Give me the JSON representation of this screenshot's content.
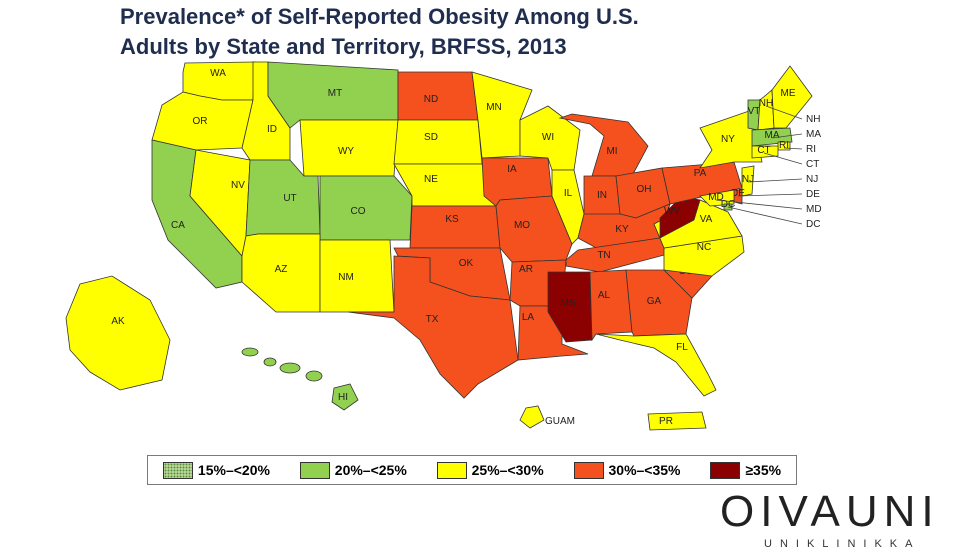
{
  "title": "Prevalence* of Self-Reported Obesity Among U.S. Adults by State and Territory, BRFSS, 2013",
  "colors": {
    "15-20": "#c8e3a8",
    "20-25": "#92d050",
    "25-30": "#ffff00",
    "30-35": "#f4511e",
    "35plus": "#8b0000"
  },
  "legend": [
    {
      "key": "15-20",
      "label": "15%–<20%"
    },
    {
      "key": "20-25",
      "label": "20%–<25%"
    },
    {
      "key": "25-30",
      "label": "25%–<30%"
    },
    {
      "key": "30-35",
      "label": "30%–<35%"
    },
    {
      "key": "35plus",
      "label": "≥35%"
    }
  ],
  "regions": [
    {
      "id": "WA",
      "category": "25-30"
    },
    {
      "id": "OR",
      "category": "25-30"
    },
    {
      "id": "CA",
      "category": "20-25"
    },
    {
      "id": "NV",
      "category": "25-30"
    },
    {
      "id": "ID",
      "category": "25-30"
    },
    {
      "id": "MT",
      "category": "20-25"
    },
    {
      "id": "WY",
      "category": "25-30"
    },
    {
      "id": "UT",
      "category": "20-25"
    },
    {
      "id": "CO",
      "category": "20-25"
    },
    {
      "id": "AZ",
      "category": "25-30"
    },
    {
      "id": "NM",
      "category": "25-30"
    },
    {
      "id": "ND",
      "category": "30-35"
    },
    {
      "id": "SD",
      "category": "25-30"
    },
    {
      "id": "NE",
      "category": "25-30"
    },
    {
      "id": "KS",
      "category": "30-35"
    },
    {
      "id": "OK",
      "category": "30-35"
    },
    {
      "id": "TX",
      "category": "30-35"
    },
    {
      "id": "MN",
      "category": "25-30"
    },
    {
      "id": "IA",
      "category": "30-35"
    },
    {
      "id": "MO",
      "category": "30-35"
    },
    {
      "id": "AR",
      "category": "30-35"
    },
    {
      "id": "LA",
      "category": "30-35"
    },
    {
      "id": "WI",
      "category": "25-30"
    },
    {
      "id": "IL",
      "category": "25-30"
    },
    {
      "id": "MI",
      "category": "30-35"
    },
    {
      "id": "IN",
      "category": "30-35"
    },
    {
      "id": "OH",
      "category": "30-35"
    },
    {
      "id": "KY",
      "category": "30-35"
    },
    {
      "id": "TN",
      "category": "30-35"
    },
    {
      "id": "MS",
      "category": "35plus"
    },
    {
      "id": "AL",
      "category": "30-35"
    },
    {
      "id": "GA",
      "category": "30-35"
    },
    {
      "id": "FL",
      "category": "25-30"
    },
    {
      "id": "SC",
      "category": "30-35"
    },
    {
      "id": "NC",
      "category": "25-30"
    },
    {
      "id": "VA",
      "category": "25-30"
    },
    {
      "id": "WV",
      "category": "35plus"
    },
    {
      "id": "PA",
      "category": "30-35"
    },
    {
      "id": "NY",
      "category": "25-30"
    },
    {
      "id": "VT",
      "category": "20-25"
    },
    {
      "id": "NH",
      "category": "25-30"
    },
    {
      "id": "ME",
      "category": "25-30"
    },
    {
      "id": "MA",
      "category": "20-25"
    },
    {
      "id": "RI",
      "category": "25-30"
    },
    {
      "id": "CT",
      "category": "25-30"
    },
    {
      "id": "NJ",
      "category": "25-30"
    },
    {
      "id": "DE",
      "category": "30-35"
    },
    {
      "id": "MD",
      "category": "25-30"
    },
    {
      "id": "DC",
      "category": "20-25"
    },
    {
      "id": "AK",
      "category": "25-30"
    },
    {
      "id": "HI",
      "category": "20-25"
    },
    {
      "id": "GUAM",
      "category": "25-30"
    },
    {
      "id": "PR",
      "category": "25-30"
    }
  ],
  "callouts": [
    "NH",
    "MA",
    "RI",
    "CT",
    "NJ",
    "DE",
    "MD",
    "DC"
  ],
  "logo": {
    "word": "OIVAUNI",
    "sub": "UNIKLINIKKA"
  }
}
